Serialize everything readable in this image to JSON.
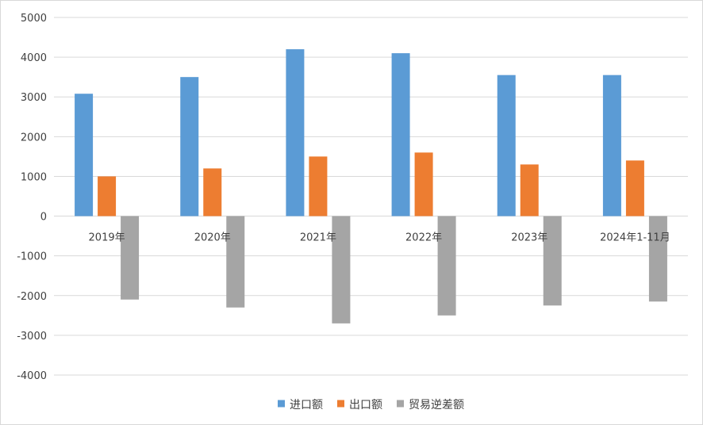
{
  "chart_data": {
    "type": "bar",
    "categories": [
      "2019年",
      "2020年",
      "2021年",
      "2022年",
      "2023年",
      "2024年1-11月"
    ],
    "series": [
      {
        "name": "进口额",
        "color": "#5b9bd5",
        "values": [
          3080,
          3500,
          4200,
          4100,
          3550,
          3550
        ]
      },
      {
        "name": "出口额",
        "color": "#ed7d31",
        "values": [
          1000,
          1200,
          1500,
          1600,
          1300,
          1400
        ]
      },
      {
        "name": "贸易逆差额",
        "color": "#a5a5a5",
        "values": [
          -2100,
          -2300,
          -2700,
          -2500,
          -2250,
          -2150
        ]
      }
    ],
    "ylim": [
      -4000,
      5000
    ],
    "yticks": [
      5000,
      4000,
      3000,
      2000,
      1000,
      0,
      -1000,
      -2000,
      -3000,
      -4000
    ],
    "grid": true,
    "legend_position": "bottom",
    "gridline_color": "#d9d9d9"
  }
}
